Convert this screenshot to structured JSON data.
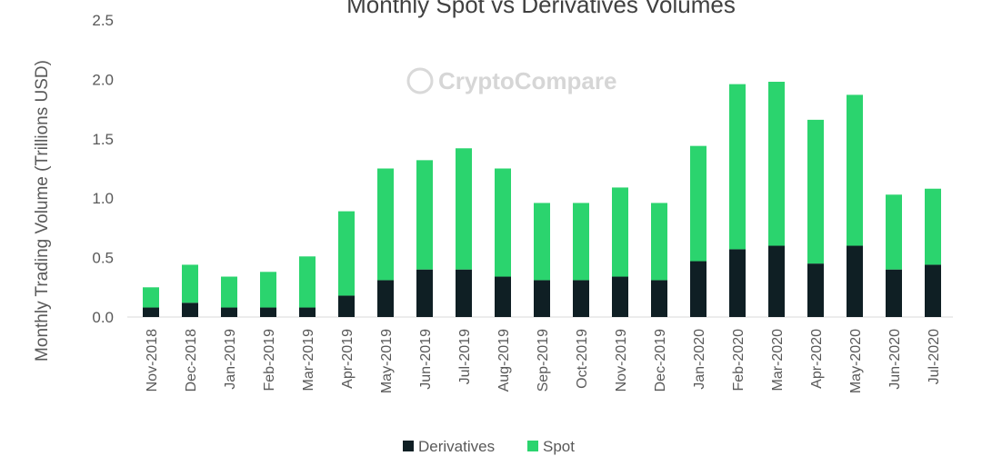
{
  "chart_data": {
    "type": "bar",
    "stacked": true,
    "title": "Monthly Spot vs Derivatives Volumes",
    "watermark": "CryptoCompare",
    "xlabel": "",
    "ylabel": "Monthly Trading Volume (Trillions USD)",
    "ylim": [
      0,
      2.5
    ],
    "yticks": [
      "0.0",
      "0.5",
      "1.0",
      "1.5",
      "2.0",
      "2.5"
    ],
    "grid": false,
    "legend_position": "bottom",
    "categories": [
      "Nov-2018",
      "Dec-2018",
      "Jan-2019",
      "Feb-2019",
      "Mar-2019",
      "Apr-2019",
      "May-2019",
      "Jun-2019",
      "Jul-2019",
      "Aug-2019",
      "Sep-2019",
      "Oct-2019",
      "Nov-2019",
      "Dec-2019",
      "Jan-2020",
      "Feb-2020",
      "Mar-2020",
      "Apr-2020",
      "May-2020",
      "Jun-2020",
      "Jul-2020"
    ],
    "series": [
      {
        "name": "Derivatives",
        "color": "#0f1f24",
        "values": [
          0.08,
          0.12,
          0.08,
          0.08,
          0.08,
          0.18,
          0.31,
          0.4,
          0.4,
          0.34,
          0.31,
          0.31,
          0.34,
          0.31,
          0.47,
          0.57,
          0.6,
          0.45,
          0.6,
          0.4,
          0.44
        ]
      },
      {
        "name": "Spot",
        "color": "#2bd46e",
        "values": [
          0.17,
          0.32,
          0.26,
          0.3,
          0.43,
          0.71,
          0.94,
          0.92,
          1.02,
          0.91,
          0.65,
          0.65,
          0.75,
          0.65,
          0.97,
          1.39,
          1.38,
          1.21,
          1.27,
          0.63,
          0.64
        ]
      }
    ]
  }
}
